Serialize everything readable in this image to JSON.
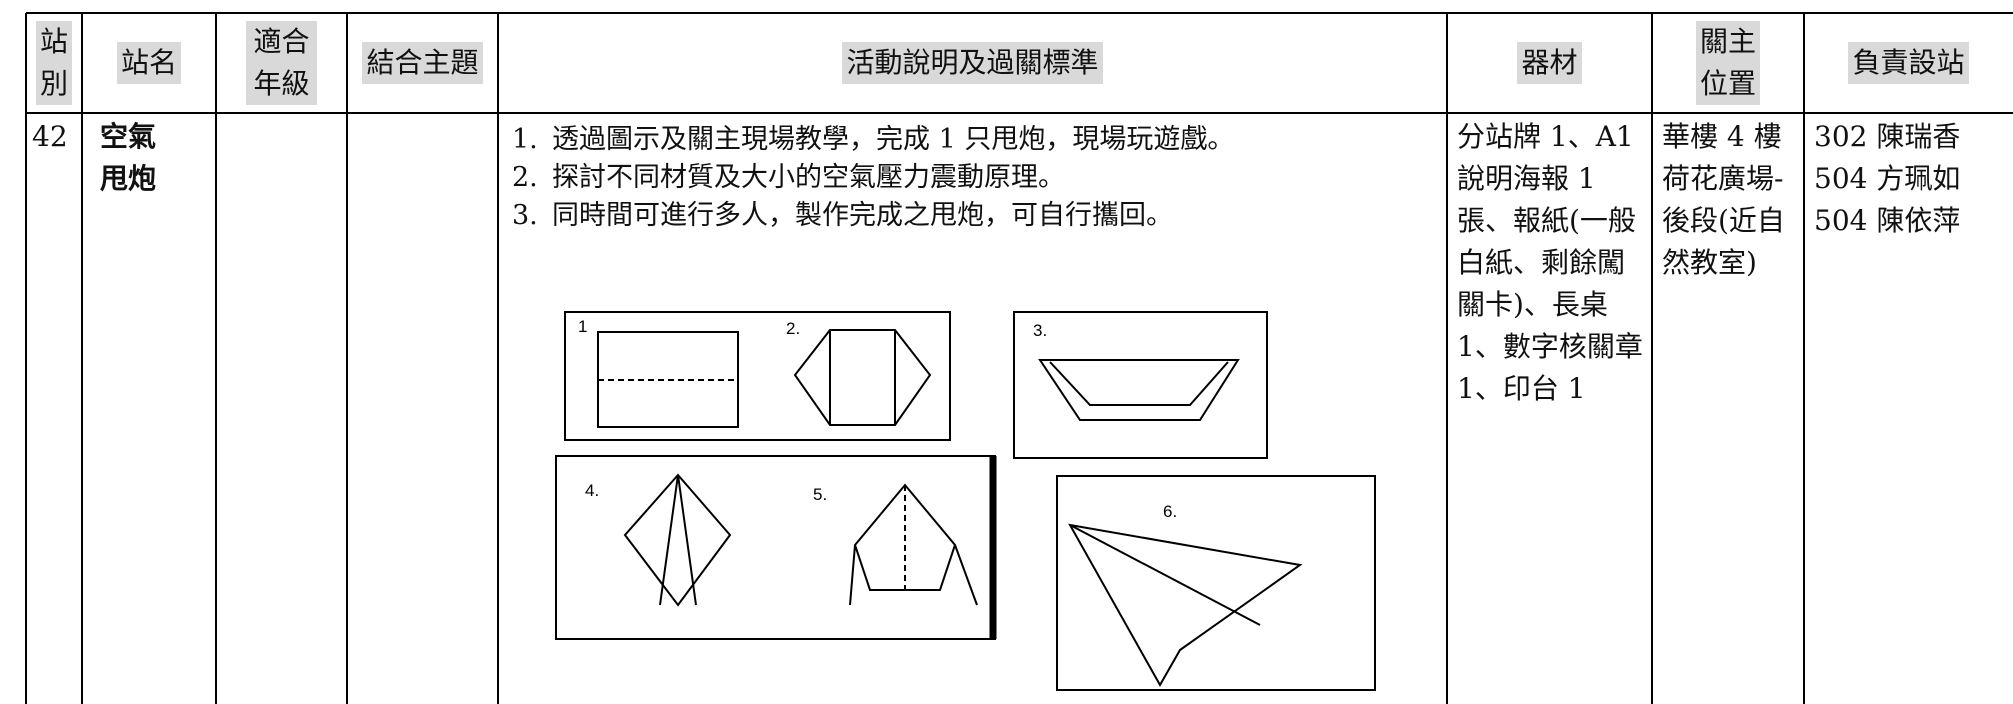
{
  "table": {
    "headers": [
      "站別",
      "站名",
      "適合年級",
      "結合主題",
      "活動說明及過關標準",
      "器材",
      "關主位置",
      "負責設站"
    ],
    "row": {
      "station": "42",
      "name": "空氣甩炮",
      "grade": "",
      "theme": "",
      "items": [
        {
          "num": "1.",
          "text": "透過圖示及關主現場教學，完成 1 只甩炮，現場玩遊戲。"
        },
        {
          "num": "2.",
          "text": "探討不同材質及大小的空氣壓力震動原理。"
        },
        {
          "num": "3.",
          "text": " 同時間可進行多人，製作完成之甩炮，可自行攜回。"
        }
      ],
      "equipment": "分站牌 1、A1 說明海報 1 張、報紙(一般白紙、剩餘闖關卡)、長桌 1、數字核關章 1、印台 1",
      "location": "華樓 4 樓荷花廣場-後段(近自然教室)",
      "staff": [
        "302 陳瑞香",
        "504 方珮如",
        "504 陳依萍"
      ]
    }
  },
  "figure": {
    "steps": [
      "1",
      "2.",
      "3.",
      "4.",
      "5.",
      "6."
    ]
  }
}
